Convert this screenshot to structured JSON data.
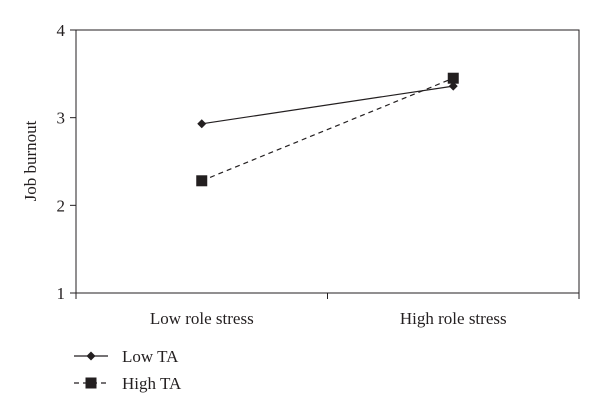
{
  "chart_data": {
    "type": "line",
    "title": "",
    "xlabel": "",
    "ylabel": "Job burnout",
    "categories": [
      "Low role stress",
      "High role stress"
    ],
    "ylim": [
      1,
      4
    ],
    "yticks": [
      "1",
      "2",
      "3",
      "4"
    ],
    "grid": false,
    "legend_position": "bottom-left",
    "series": [
      {
        "name": "Low TA",
        "values": [
          2.93,
          3.36
        ],
        "marker": "diamond",
        "line_style": "solid",
        "color": "#231f20"
      },
      {
        "name": "High TA",
        "values": [
          2.28,
          3.45
        ],
        "marker": "square",
        "line_style": "dashed",
        "color": "#231f20"
      }
    ]
  }
}
